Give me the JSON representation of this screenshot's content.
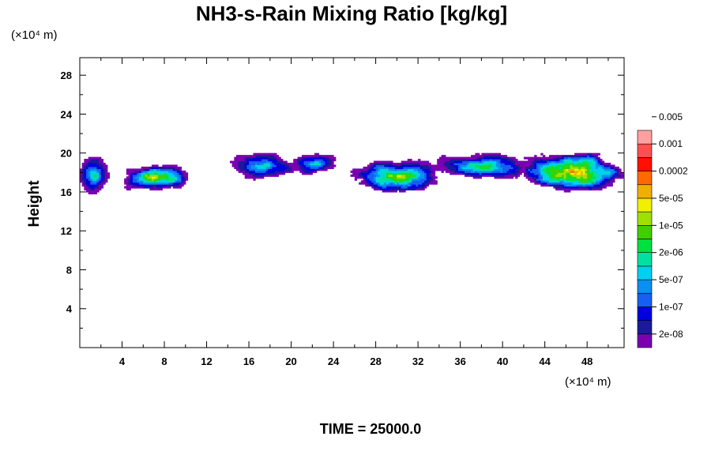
{
  "chart_data": {
    "type": "heatmap",
    "title": "NH3-s-Rain Mixing Ratio [kg/kg]",
    "ylabel": "Height",
    "xlabel": "",
    "x_unit": "(×10⁴ m)",
    "y_unit": "(×10⁴ m)",
    "footer": "TIME = 25000.0",
    "xlim": [
      0,
      51.5
    ],
    "ylim": [
      0,
      29.8
    ],
    "x_ticks": [
      4,
      8,
      12,
      16,
      20,
      24,
      28,
      32,
      36,
      40,
      44,
      48
    ],
    "y_ticks": [
      4,
      8,
      12,
      16,
      20,
      24,
      28
    ],
    "colorbar": {
      "colors": [
        "#7a00b0",
        "#1a1a9a",
        "#0000e0",
        "#1560f0",
        "#0a90f0",
        "#00d0f0",
        "#00e0a0",
        "#00e040",
        "#40d000",
        "#a0e000",
        "#f0f000",
        "#f0b000",
        "#ff6a00",
        "#ff1000",
        "#ff5050",
        "#ffa0a0"
      ],
      "labels": [
        "2e-08",
        "1e-07",
        "5e-07",
        "2e-06",
        "1e-05",
        "5e-05",
        "0.0002",
        "0.001",
        "0.005"
      ]
    },
    "blobs": [
      {
        "x0": 0.0,
        "x1": 2.6,
        "y0": 15.6,
        "y1": 19.5,
        "peak": 6
      },
      {
        "x0": 3.8,
        "x1": 10.2,
        "y0": 16.1,
        "y1": 18.8,
        "peak": 11
      },
      {
        "x0": 14.2,
        "x1": 20.2,
        "y0": 17.3,
        "y1": 19.9,
        "peak": 5
      },
      {
        "x0": 20.0,
        "x1": 24.6,
        "y0": 17.8,
        "y1": 19.9,
        "peak": 4
      },
      {
        "x0": 25.4,
        "x1": 34.7,
        "y0": 16.0,
        "y1": 19.1,
        "peak": 9
      },
      {
        "x0": 33.7,
        "x1": 42.2,
        "y0": 17.2,
        "y1": 19.9,
        "peak": 7
      },
      {
        "x0": 41.5,
        "x1": 51.5,
        "y0": 16.1,
        "y1": 19.9,
        "peak": 13
      }
    ]
  }
}
